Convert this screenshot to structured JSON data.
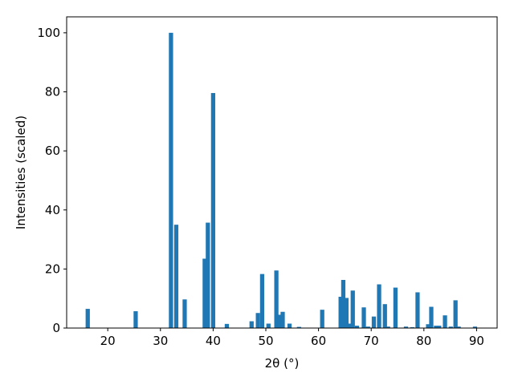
{
  "chart_data": {
    "type": "bar",
    "xlabel": "2θ (°)",
    "ylabel": "Intensities (scaled)",
    "color": "#1f77b4",
    "bar_width": 0.8,
    "x": [
      16.2,
      25.3,
      32.0,
      33.0,
      34.6,
      38.4,
      39.0,
      40.0,
      42.6,
      47.3,
      48.5,
      49.3,
      50.5,
      52.0,
      52.6,
      53.2,
      54.5,
      56.3,
      60.7,
      64.2,
      64.7,
      65.3,
      65.9,
      66.5,
      67.3,
      68.6,
      69.4,
      70.5,
      71.5,
      72.6,
      73.2,
      74.6,
      76.6,
      77.8,
      78.8,
      80.8,
      81.4,
      82.3,
      82.9,
      84.0,
      85.1,
      86.0,
      86.6,
      89.7
    ],
    "values": [
      6.5,
      5.7,
      100,
      35,
      9.7,
      23.5,
      35.7,
      79.6,
      1.4,
      2.3,
      5.1,
      18.3,
      1.5,
      19.5,
      4.5,
      5.5,
      1.5,
      0.4,
      6.2,
      10.6,
      16.3,
      10.2,
      1.5,
      12.7,
      0.8,
      7.0,
      0.5,
      3.9,
      14.8,
      8.1,
      0.5,
      13.7,
      0.5,
      0.3,
      12.1,
      1.3,
      7.2,
      0.8,
      0.8,
      4.3,
      0.5,
      9.4,
      0.5,
      0.5
    ],
    "xlim": [
      12.2,
      93.9
    ],
    "ylim": [
      0,
      105.4
    ],
    "xticks": [
      20,
      30,
      40,
      50,
      60,
      70,
      80,
      90
    ],
    "yticks": [
      0,
      20,
      40,
      60,
      80,
      100
    ]
  }
}
